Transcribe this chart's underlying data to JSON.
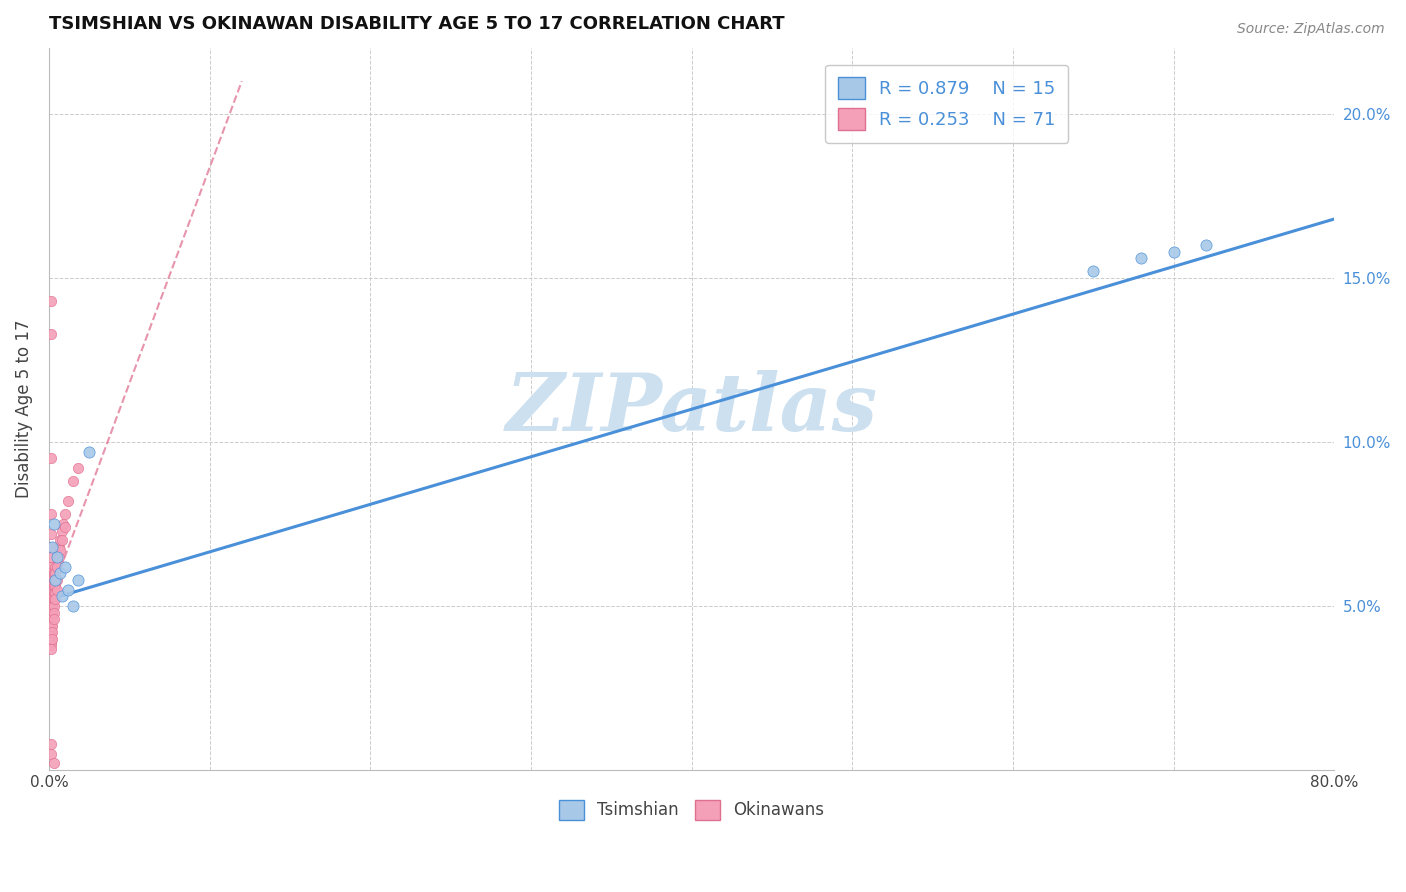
{
  "title": "TSIMSHIAN VS OKINAWAN DISABILITY AGE 5 TO 17 CORRELATION CHART",
  "source": "Source: ZipAtlas.com",
  "ylabel": "Disability Age 5 to 17",
  "xlim": [
    0.0,
    0.8
  ],
  "ylim": [
    0.0,
    0.22
  ],
  "yticks": [
    0.05,
    0.1,
    0.15,
    0.2
  ],
  "yticklabels": [
    "5.0%",
    "10.0%",
    "15.0%",
    "20.0%"
  ],
  "legend_r1": "R = 0.879",
  "legend_n1": "N = 15",
  "legend_r2": "R = 0.253",
  "legend_n2": "N = 71",
  "tsimshian_color": "#a8c8e8",
  "okinawan_color": "#f4a0b8",
  "trendline_tsimshian_color": "#4a90d9",
  "trendline_okinawan_color": "#e07090",
  "watermark": "ZIPatlas",
  "watermark_color": "#cce0f0",
  "tsimshian_line_x0": 0.0,
  "tsimshian_line_y0": 0.052,
  "tsimshian_line_x1": 0.8,
  "tsimshian_line_y1": 0.168,
  "okinawan_line_x0": 0.0,
  "okinawan_line_y0": 0.052,
  "okinawan_line_x1": 0.12,
  "okinawan_line_y1": 0.21,
  "tsimshian_x": [
    0.002,
    0.003,
    0.004,
    0.005,
    0.007,
    0.008,
    0.01,
    0.012,
    0.015,
    0.018,
    0.025,
    0.65,
    0.68,
    0.7,
    0.72
  ],
  "tsimshian_y": [
    0.068,
    0.075,
    0.058,
    0.065,
    0.06,
    0.053,
    0.062,
    0.055,
    0.05,
    0.058,
    0.097,
    0.152,
    0.156,
    0.158,
    0.16
  ],
  "okinawan_x": [
    0.001,
    0.001,
    0.001,
    0.001,
    0.001,
    0.001,
    0.001,
    0.001,
    0.001,
    0.001,
    0.001,
    0.001,
    0.001,
    0.001,
    0.001,
    0.001,
    0.001,
    0.001,
    0.001,
    0.001,
    0.001,
    0.001,
    0.001,
    0.001,
    0.001,
    0.001,
    0.001,
    0.001,
    0.001,
    0.001,
    0.002,
    0.002,
    0.002,
    0.002,
    0.002,
    0.002,
    0.002,
    0.002,
    0.002,
    0.002,
    0.003,
    0.003,
    0.003,
    0.003,
    0.003,
    0.003,
    0.003,
    0.003,
    0.003,
    0.004,
    0.004,
    0.004,
    0.004,
    0.004,
    0.004,
    0.005,
    0.005,
    0.005,
    0.005,
    0.006,
    0.006,
    0.007,
    0.007,
    0.008,
    0.008,
    0.009,
    0.01,
    0.01,
    0.012,
    0.015,
    0.018
  ],
  "okinawan_y": [
    0.143,
    0.133,
    0.095,
    0.078,
    0.072,
    0.068,
    0.065,
    0.062,
    0.06,
    0.058,
    0.056,
    0.054,
    0.052,
    0.051,
    0.05,
    0.049,
    0.048,
    0.047,
    0.046,
    0.045,
    0.044,
    0.043,
    0.042,
    0.041,
    0.04,
    0.039,
    0.038,
    0.037,
    0.005,
    0.008,
    0.058,
    0.056,
    0.054,
    0.052,
    0.05,
    0.048,
    0.046,
    0.044,
    0.042,
    0.04,
    0.06,
    0.058,
    0.056,
    0.054,
    0.052,
    0.05,
    0.048,
    0.046,
    0.002,
    0.062,
    0.06,
    0.058,
    0.056,
    0.054,
    0.052,
    0.065,
    0.062,
    0.058,
    0.055,
    0.068,
    0.065,
    0.07,
    0.067,
    0.073,
    0.07,
    0.075,
    0.078,
    0.074,
    0.082,
    0.088,
    0.092
  ]
}
